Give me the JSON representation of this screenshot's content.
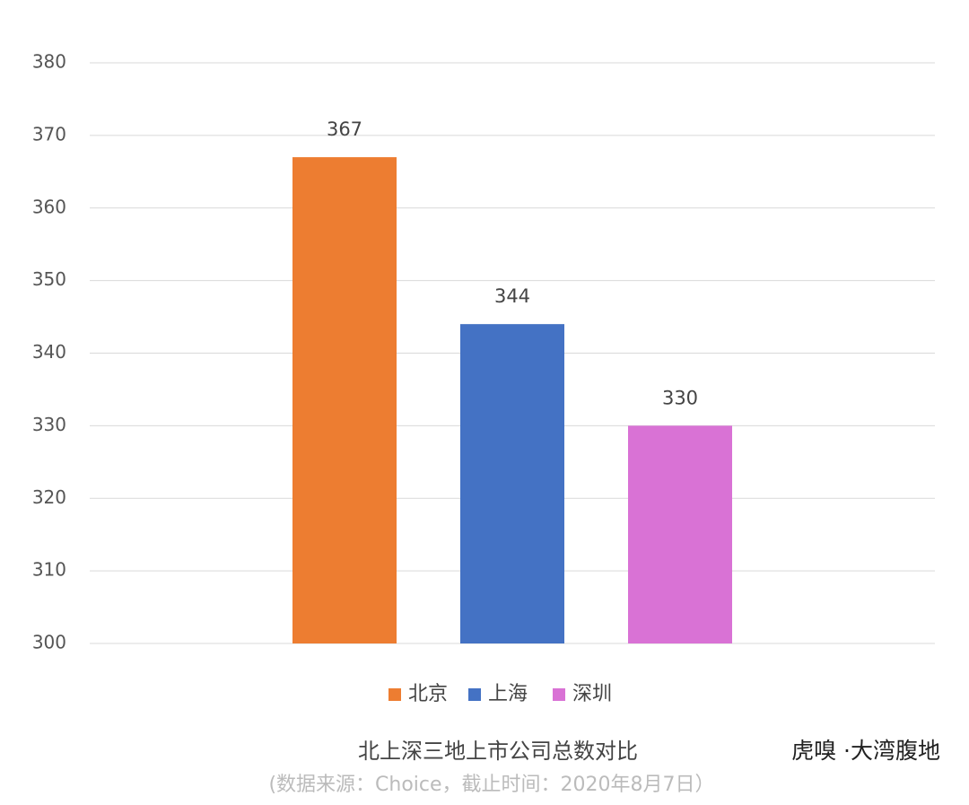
{
  "chart_data": {
    "type": "bar",
    "title": "北上深三地上市公司总数对比",
    "subtitle": "(数据来源：Choice，截止时间：2020年8月7日）",
    "watermark": "虎嗅 ·大湾腹地",
    "categories": [
      null
    ],
    "series": [
      {
        "name": "北京",
        "color": "#ed7d31",
        "values": [
          367
        ]
      },
      {
        "name": "上海",
        "color": "#4472c4",
        "values": [
          344
        ]
      },
      {
        "name": "深圳",
        "color": "#d972d5",
        "values": [
          330
        ]
      }
    ],
    "ylim": [
      300,
      380
    ],
    "yticks": [
      300,
      310,
      320,
      330,
      340,
      350,
      360,
      370,
      380
    ],
    "grid": true,
    "legend": "bottom"
  }
}
